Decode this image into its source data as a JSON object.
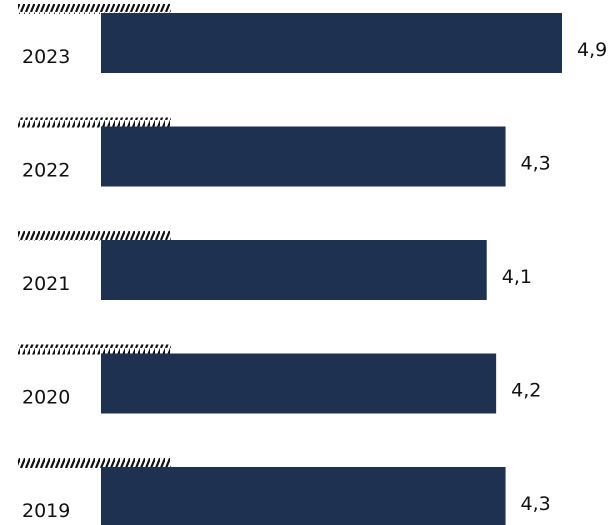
{
  "chart_data": {
    "type": "bar",
    "orientation": "horizontal",
    "categories": [
      "2023",
      "2022",
      "2021",
      "2020",
      "2019"
    ],
    "values": [
      4.9,
      4.3,
      4.1,
      4.2,
      4.3
    ],
    "value_labels": [
      "4,9",
      "4,3",
      "4,1",
      "4,2",
      "4,3"
    ],
    "title": "",
    "xlabel": "",
    "ylabel": "",
    "xlim": [
      0,
      4.9
    ],
    "grid": false,
    "legend": "none",
    "bar_color": "#1f3150",
    "text_color": "#111111",
    "hatch_color": "#111111"
  }
}
